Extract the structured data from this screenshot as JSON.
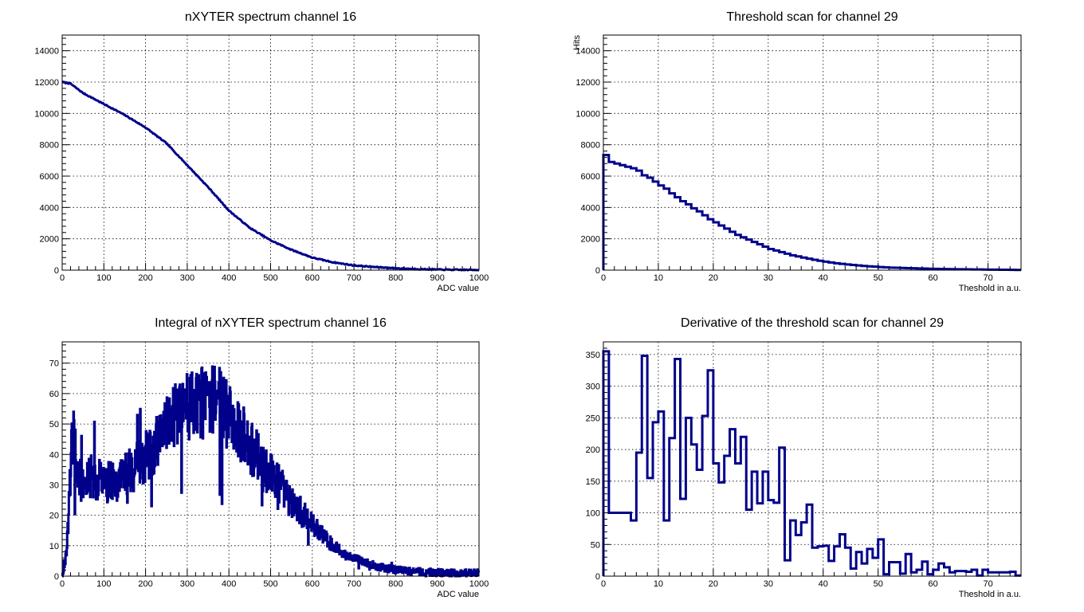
{
  "chart_data": [
    {
      "type": "line",
      "title": "nXYTER spectrum channel 16",
      "xlabel": "ADC value",
      "ylabel": "",
      "xlim": [
        0,
        1000
      ],
      "ylim": [
        0,
        15000
      ],
      "xticks": [
        0,
        100,
        200,
        300,
        400,
        500,
        600,
        700,
        800,
        900,
        1000
      ],
      "yticks": [
        0,
        2000,
        4000,
        6000,
        8000,
        10000,
        12000,
        14000
      ],
      "grid": true,
      "style": "line",
      "x": [
        0,
        20,
        50,
        100,
        150,
        200,
        250,
        300,
        350,
        400,
        450,
        500,
        550,
        600,
        650,
        700,
        750,
        800,
        850,
        900,
        950,
        1000
      ],
      "y": [
        12000,
        11900,
        11300,
        10600,
        9900,
        9100,
        8100,
        6700,
        5300,
        3800,
        2700,
        1900,
        1300,
        800,
        500,
        300,
        200,
        120,
        70,
        40,
        20,
        10
      ]
    },
    {
      "type": "bar",
      "title": "Threshold scan for channel 29",
      "xlabel": "Theshold in a.u.",
      "ylabel": "Hits",
      "xlim": [
        0,
        76
      ],
      "ylim": [
        0,
        15000
      ],
      "xticks": [
        0,
        10,
        20,
        30,
        40,
        50,
        60,
        70
      ],
      "yticks": [
        0,
        2000,
        4000,
        6000,
        8000,
        10000,
        12000,
        14000
      ],
      "grid": true,
      "style": "step",
      "values": [
        7350,
        6900,
        6800,
        6700,
        6600,
        6500,
        6350,
        6050,
        5900,
        5650,
        5400,
        5200,
        4900,
        4650,
        4400,
        4200,
        3950,
        3750,
        3500,
        3250,
        3050,
        2850,
        2650,
        2450,
        2250,
        2100,
        1950,
        1800,
        1650,
        1500,
        1350,
        1250,
        1150,
        1050,
        950,
        880,
        800,
        730,
        660,
        600,
        540,
        490,
        440,
        400,
        360,
        330,
        300,
        270,
        240,
        220,
        200,
        180,
        160,
        150,
        140,
        130,
        120,
        110,
        100,
        92,
        85,
        78,
        72,
        66,
        60,
        55,
        50,
        46,
        42,
        38,
        34,
        30,
        27,
        24,
        21,
        10
      ]
    },
    {
      "type": "line",
      "title": "Integral of nXYTER spectrum channel 16",
      "xlabel": "ADC value",
      "ylabel": "",
      "xlim": [
        0,
        1000
      ],
      "ylim": [
        0,
        77
      ],
      "xticks": [
        0,
        100,
        200,
        300,
        400,
        500,
        600,
        700,
        800,
        900,
        1000
      ],
      "yticks": [
        0,
        10,
        20,
        30,
        40,
        50,
        60,
        70
      ],
      "grid": true,
      "style": "noisy-step",
      "x": [
        0,
        5,
        10,
        15,
        20,
        25,
        30,
        35,
        40,
        50,
        60,
        70,
        80,
        100,
        120,
        140,
        160,
        180,
        200,
        220,
        240,
        260,
        280,
        300,
        320,
        340,
        360,
        380,
        400,
        420,
        440,
        460,
        480,
        500,
        520,
        540,
        560,
        580,
        600,
        620,
        640,
        660,
        680,
        700,
        720,
        740,
        760,
        780,
        800,
        850,
        900,
        950,
        1000
      ],
      "y": [
        0,
        3,
        8,
        20,
        40,
        47,
        42,
        35,
        32,
        30,
        31,
        33,
        32,
        31,
        31,
        32,
        34,
        36,
        39,
        42,
        46,
        50,
        54,
        56,
        55,
        57,
        57,
        56,
        52,
        49,
        45,
        41,
        37,
        33,
        30,
        26,
        23,
        20,
        17,
        14,
        11,
        9,
        7,
        6,
        5,
        4,
        3,
        2.5,
        2,
        1.5,
        1.2,
        1,
        1
      ]
    },
    {
      "type": "bar",
      "title": "Derivative of the threshold scan for channel 29",
      "xlabel": "Theshold in a.u.",
      "ylabel": "",
      "xlim": [
        0,
        76
      ],
      "ylim": [
        0,
        370
      ],
      "xticks": [
        0,
        10,
        20,
        30,
        40,
        50,
        60,
        70
      ],
      "yticks": [
        0,
        50,
        100,
        150,
        200,
        250,
        300,
        350
      ],
      "grid": true,
      "style": "step",
      "values": [
        355,
        100,
        100,
        100,
        100,
        88,
        195,
        348,
        155,
        243,
        260,
        88,
        218,
        343,
        122,
        250,
        208,
        168,
        253,
        325,
        178,
        148,
        190,
        232,
        178,
        220,
        105,
        165,
        115,
        165,
        120,
        116,
        203,
        25,
        88,
        65,
        85,
        113,
        45,
        47,
        48,
        24,
        47,
        66,
        45,
        12,
        38,
        20,
        43,
        29,
        58,
        3,
        22,
        22,
        4,
        35,
        6,
        10,
        23,
        3,
        10,
        20,
        14,
        6,
        8,
        8,
        7,
        10,
        1,
        10,
        6,
        6,
        6,
        6,
        7,
        1
      ]
    }
  ]
}
